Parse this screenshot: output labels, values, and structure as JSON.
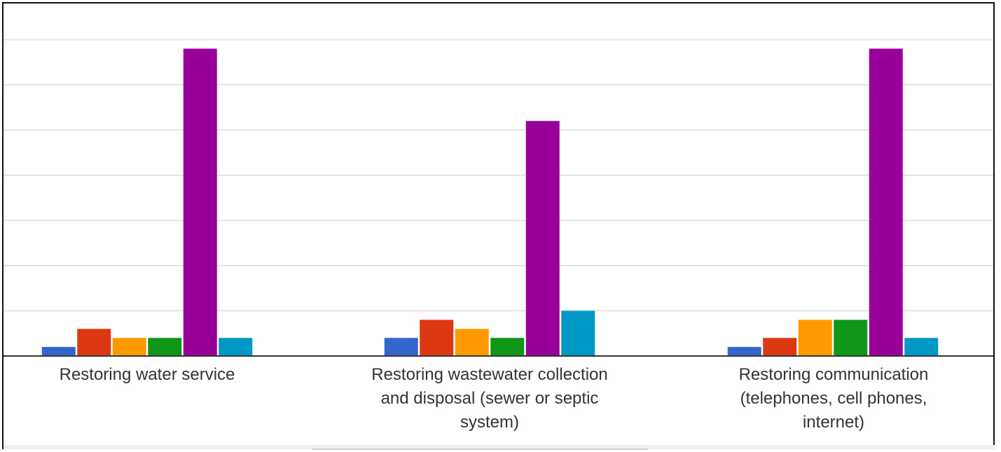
{
  "chart_data": {
    "type": "bar",
    "categories": [
      "Restoring water service",
      "Restoring wastewater collection and disposal (sewer or septic system)",
      "Restoring communication (telephones, cell phones, internet)"
    ],
    "category_lines": [
      [
        "Restoring water service"
      ],
      [
        "Restoring wastewater collection",
        "and disposal (sewer or septic",
        "system)"
      ],
      [
        "Restoring communication",
        "(telephones, cell phones,",
        "internet)"
      ]
    ],
    "series": [
      {
        "color": "#3366cc",
        "values": [
          1,
          2,
          1
        ]
      },
      {
        "color": "#dc3912",
        "values": [
          3,
          4,
          2
        ]
      },
      {
        "color": "#ff9900",
        "values": [
          2,
          3,
          4
        ]
      },
      {
        "color": "#109618",
        "values": [
          2,
          2,
          4
        ]
      },
      {
        "color": "#990099",
        "values": [
          34,
          26,
          34
        ]
      },
      {
        "color": "#0099c6",
        "values": [
          2,
          5,
          2
        ]
      }
    ],
    "ylim": [
      0,
      35
    ],
    "grid": true,
    "gridline_values": [
      5,
      10,
      15,
      20,
      25,
      30,
      35
    ],
    "title": "",
    "xlabel": "",
    "ylabel": ""
  }
}
